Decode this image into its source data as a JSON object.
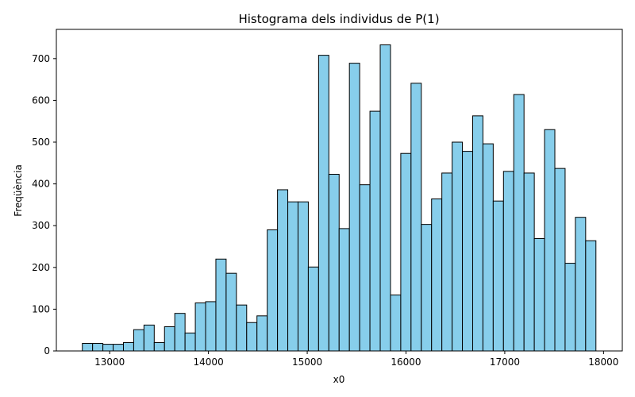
{
  "chart_data": {
    "type": "bar",
    "title": "Histograma dels individus de P(1)",
    "xlabel": "x0",
    "ylabel": "Freqüència",
    "bin_start": 12723,
    "bin_width": 104,
    "values": [
      18,
      18,
      16,
      16,
      20,
      51,
      62,
      20,
      58,
      90,
      43,
      115,
      118,
      220,
      186,
      110,
      68,
      84,
      290,
      386,
      357,
      357,
      201,
      708,
      423,
      293,
      689,
      398,
      574,
      733,
      134,
      473,
      641,
      303,
      364,
      426,
      500,
      478,
      563,
      496,
      359,
      430,
      614,
      426,
      269,
      530,
      437,
      210,
      320,
      264
    ],
    "xlim": [
      12460,
      18190
    ],
    "ylim": [
      0,
      770
    ],
    "xticks": [
      13000,
      14000,
      15000,
      16000,
      17000,
      18000
    ],
    "yticks": [
      0,
      100,
      200,
      300,
      400,
      500,
      600,
      700
    ],
    "bar_color": "#87ceeb",
    "edge_color": "#000000",
    "grid": false
  }
}
